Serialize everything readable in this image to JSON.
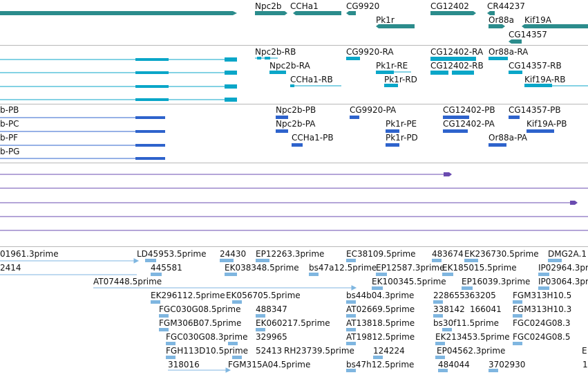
{
  "colors": {
    "gene": "#2b8c8c",
    "mrna": "#0aa6c8",
    "protein": "#2e63cc",
    "other": "#6a4bb0",
    "est": "#7fb6e0",
    "separator": "#b8b8b8"
  },
  "tracks": {
    "genes": [
      "Npc2b",
      "CCHa1",
      "CG9920",
      "Pk1r",
      "CG12402",
      "CR44237",
      "Or88a",
      "Kif19A",
      "CG14357"
    ],
    "transcripts": [
      "Npc2b-RB",
      "Npc2b-RA",
      "CCHa1-RB",
      "CG9920-RA",
      "Pk1r-RE",
      "Pk1r-RD",
      "CG12402-RA",
      "CG12402-RB",
      "Or88a-RA",
      "CG14357-RB",
      "Kif19A-RB"
    ],
    "proteins_left": [
      "b-PB",
      "b-PC",
      "b-PF",
      "b-PG"
    ],
    "proteins": [
      "Npc2b-PB",
      "Npc2b-PA",
      "CCHa1-PB",
      "CG9920-PA",
      "Pk1r-PE",
      "Pk1r-PD",
      "CG12402-PB",
      "CG12402-PA",
      "Or88a-PA",
      "CG14357-PB",
      "Kif19A-PB"
    ],
    "ests": [
      "01961.3prime",
      "LD45953.5prime",
      "24430",
      "EP12263.3prime",
      "EC38109.5prime",
      "483674",
      "EK236730.5prime",
      "DMG2A.1",
      "2414",
      "445581",
      "EK038348.5prime",
      "bs47a12.5prime",
      "EP12587.3prime",
      "EK185015.5prime",
      "IP02964.3pr",
      "AT07448.5prime",
      "EK100345.5prime",
      "EP16039.3prime",
      "IP03064.3pr",
      "EK296112.5prime",
      "EK056705.5prime",
      "bs44b04.3prime",
      "228655",
      "363205",
      "FGM313H10.5",
      "FGC030G08.5prime",
      "488347",
      "AT02669.5prime",
      "338142",
      "166041",
      "FGM313H10.3",
      "FGM306B07.5prime",
      "EK060217.5prime",
      "AT13818.5prime",
      "bs30f11.5prime",
      "FGC024G08.3",
      "FGC030G08.3prime",
      "329965",
      "AT19812.5prime",
      "EK213453.5prime",
      "FGC024G08.5",
      "FGH113D10.5prime",
      "52413",
      "RH23739.5prime",
      "124224",
      "EP04562.3prime",
      "E",
      "318016",
      "FGM315A04.5prime",
      "bs47h12.5prime",
      "484044",
      "3702930",
      "1"
    ]
  }
}
